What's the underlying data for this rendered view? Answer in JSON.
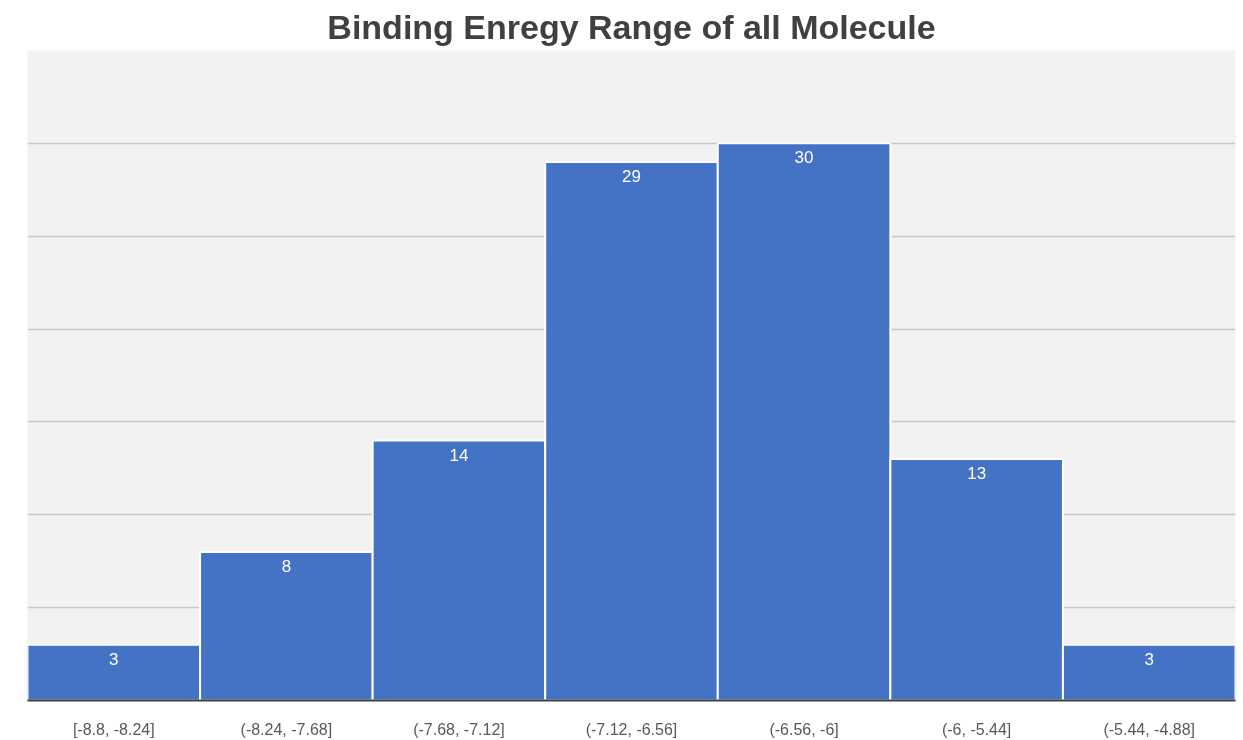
{
  "chart_data": {
    "type": "bar",
    "title": "Binding Enregy Range of all Molecule",
    "categories": [
      "[-8.8, -8.24]",
      "(-8.24, -7.68]",
      "(-7.68, -7.12]",
      "(-7.12, -6.56]",
      "(-6.56, -6]",
      "(-6, -5.44]",
      "(-5.44, -4.88]"
    ],
    "values": [
      3,
      8,
      14,
      29,
      30,
      13,
      3
    ],
    "color": "#4472c4",
    "data_labels": true,
    "ylim": [
      0,
      35
    ],
    "yticks": [
      {
        "value": 0,
        "label": null
      },
      {
        "value": 5,
        "label": null
      },
      {
        "value": 10,
        "label": null
      },
      {
        "value": 15,
        "label": null
      },
      {
        "value": 20,
        "label": null
      },
      {
        "value": 25,
        "label": null
      },
      {
        "value": 30,
        "label": null
      },
      {
        "value": 35,
        "label": null
      }
    ],
    "grid": "y",
    "tick_labels": "x"
  }
}
